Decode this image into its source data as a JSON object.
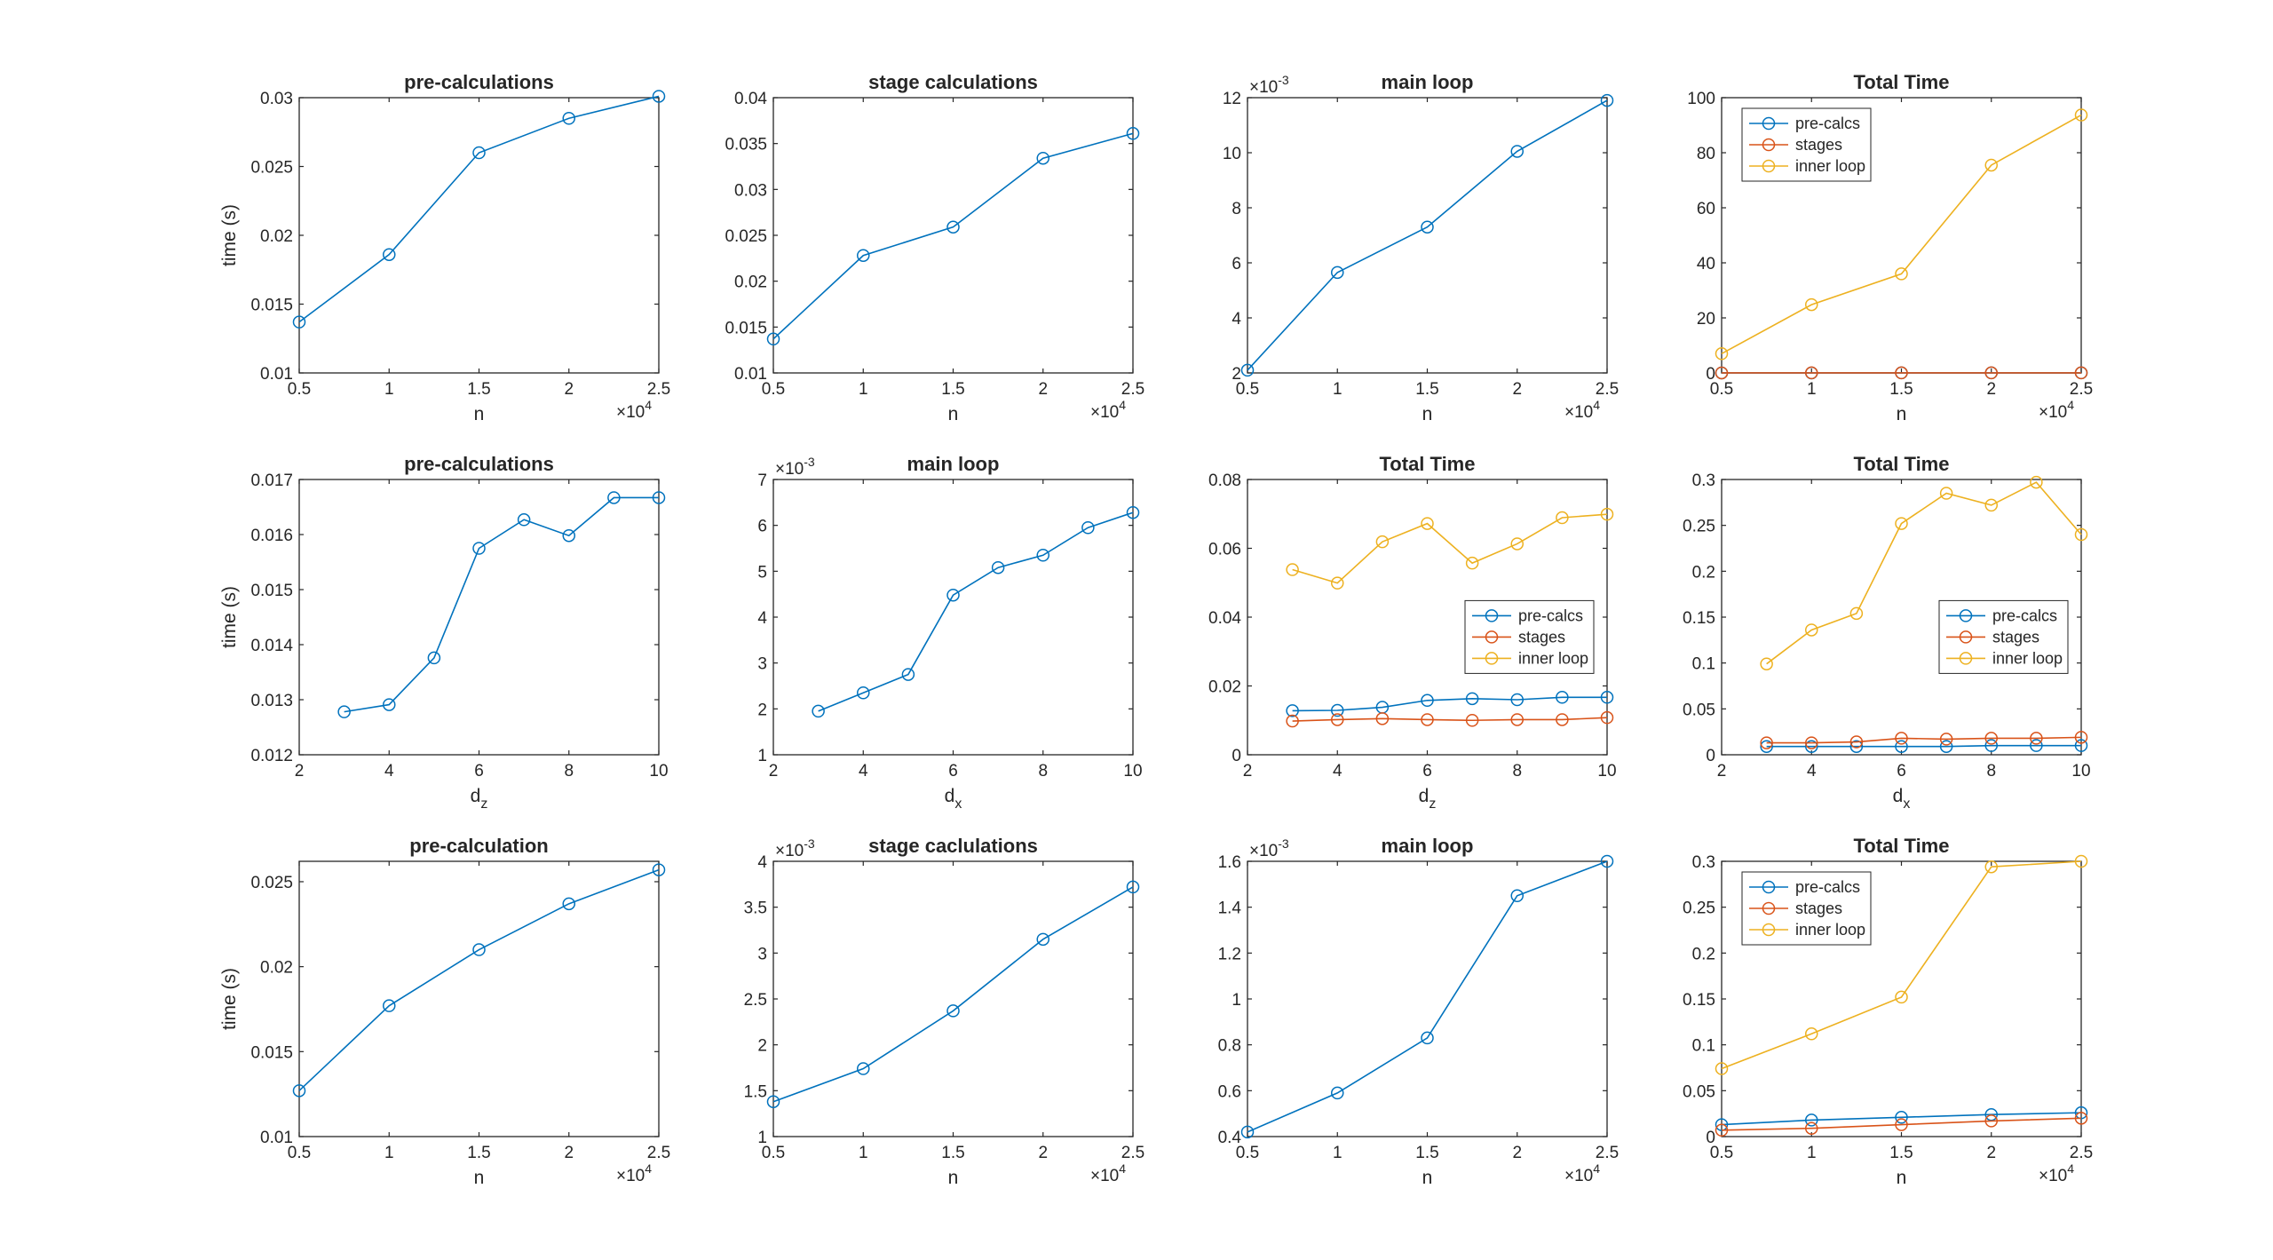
{
  "colors": {
    "blue": "#0072BD",
    "orange": "#D95319",
    "yellow": "#EDB120",
    "axis": "#262626",
    "background": "#ffffff"
  },
  "chart_data": [
    {
      "type": "line",
      "title": "pre-calculations",
      "xlabel": "n",
      "ylabel": "time (s)",
      "x": [
        5000,
        10000,
        15000,
        20000,
        25000
      ],
      "xlim": [
        5000,
        25000
      ],
      "xticks": [
        5000,
        10000,
        15000,
        20000,
        25000
      ],
      "xticklabels": [
        "0.5",
        "1",
        "1.5",
        "2",
        "2.5"
      ],
      "xexp": "4",
      "ylim": [
        0.01,
        0.03
      ],
      "yticks": [
        0.01,
        0.015,
        0.02,
        0.025,
        0.03
      ],
      "yticklabels": [
        "0.01",
        "0.015",
        "0.02",
        "0.025",
        "0.03"
      ],
      "series": [
        {
          "name": "pre-calculations",
          "color": "blue",
          "values": [
            0.0137,
            0.0186,
            0.026,
            0.0285,
            0.0301
          ]
        }
      ]
    },
    {
      "type": "line",
      "title": "stage calculations",
      "xlabel": "n",
      "ylabel": "",
      "x": [
        5000,
        10000,
        15000,
        20000,
        25000
      ],
      "xlim": [
        5000,
        25000
      ],
      "xticks": [
        5000,
        10000,
        15000,
        20000,
        25000
      ],
      "xticklabels": [
        "0.5",
        "1",
        "1.5",
        "2",
        "2.5"
      ],
      "xexp": "4",
      "ylim": [
        0.01,
        0.04
      ],
      "yticks": [
        0.01,
        0.015,
        0.02,
        0.025,
        0.03,
        0.035,
        0.04
      ],
      "yticklabels": [
        "0.01",
        "0.015",
        "0.02",
        "0.025",
        "0.03",
        "0.035",
        "0.04"
      ],
      "series": [
        {
          "name": "stage calculations",
          "color": "blue",
          "values": [
            0.0137,
            0.0228,
            0.0259,
            0.0334,
            0.0361
          ]
        }
      ]
    },
    {
      "type": "line",
      "title": "main loop",
      "xlabel": "n",
      "ylabel": "",
      "yexp": "-3",
      "x": [
        5000,
        10000,
        15000,
        20000,
        25000
      ],
      "xlim": [
        5000,
        25000
      ],
      "xticks": [
        5000,
        10000,
        15000,
        20000,
        25000
      ],
      "xticklabels": [
        "0.5",
        "1",
        "1.5",
        "2",
        "2.5"
      ],
      "xexp": "4",
      "ylim": [
        2,
        12
      ],
      "yticks": [
        2,
        4,
        6,
        8,
        10,
        12
      ],
      "yticklabels": [
        "2",
        "4",
        "6",
        "8",
        "10",
        "12"
      ],
      "series": [
        {
          "name": "main loop",
          "color": "blue",
          "values": [
            2.1,
            5.65,
            7.3,
            10.05,
            11.9
          ]
        }
      ]
    },
    {
      "type": "line",
      "title": "Total Time",
      "xlabel": "n",
      "ylabel": "",
      "x": [
        5000,
        10000,
        15000,
        20000,
        25000
      ],
      "xlim": [
        5000,
        25000
      ],
      "xticks": [
        5000,
        10000,
        15000,
        20000,
        25000
      ],
      "xticklabels": [
        "0.5",
        "1",
        "1.5",
        "2",
        "2.5"
      ],
      "xexp": "4",
      "ylim": [
        0,
        100
      ],
      "yticks": [
        0,
        20,
        40,
        60,
        80,
        100
      ],
      "yticklabels": [
        "0",
        "20",
        "40",
        "60",
        "80",
        "100"
      ],
      "legend": "top-left",
      "series": [
        {
          "name": "pre-calcs",
          "color": "blue",
          "values": [
            0.014,
            0.019,
            0.026,
            0.029,
            0.03
          ]
        },
        {
          "name": "stages",
          "color": "orange",
          "values": [
            0.014,
            0.023,
            0.026,
            0.033,
            0.036
          ]
        },
        {
          "name": "inner loop",
          "color": "yellow",
          "values": [
            7,
            24.8,
            36,
            75.5,
            93.7
          ]
        }
      ]
    },
    {
      "type": "line",
      "title": "pre-calculations",
      "xlabel": "d",
      "xsub": "z",
      "ylabel": "time (s)",
      "x": [
        3,
        4,
        5,
        6,
        7,
        8,
        9,
        10
      ],
      "xlim": [
        2,
        10
      ],
      "xticks": [
        2,
        4,
        6,
        8,
        10
      ],
      "xticklabels": [
        "2",
        "4",
        "6",
        "8",
        "10"
      ],
      "ylim": [
        0.012,
        0.017
      ],
      "yticks": [
        0.012,
        0.013,
        0.014,
        0.015,
        0.016,
        0.017
      ],
      "yticklabels": [
        "0.012",
        "0.013",
        "0.014",
        "0.015",
        "0.016",
        "0.017"
      ],
      "series": [
        {
          "name": "pre-calculations",
          "color": "blue",
          "values": [
            0.01278,
            0.01291,
            0.01376,
            0.01575,
            0.01627,
            0.01598,
            0.01667,
            0.01667
          ]
        }
      ]
    },
    {
      "type": "line",
      "title": "main loop",
      "xlabel": "d",
      "xsub": "x",
      "ylabel": "",
      "yexp": "-3",
      "x": [
        3,
        4,
        5,
        6,
        7,
        8,
        9,
        10
      ],
      "xlim": [
        2,
        10
      ],
      "xticks": [
        2,
        4,
        6,
        8,
        10
      ],
      "xticklabels": [
        "2",
        "4",
        "6",
        "8",
        "10"
      ],
      "ylim": [
        1,
        7
      ],
      "yticks": [
        1,
        2,
        3,
        4,
        5,
        6,
        7
      ],
      "yticklabels": [
        "1",
        "2",
        "3",
        "4",
        "5",
        "6",
        "7"
      ],
      "series": [
        {
          "name": "main loop",
          "color": "blue",
          "values": [
            1.95,
            2.35,
            2.75,
            4.48,
            5.08,
            5.35,
            5.95,
            6.28
          ]
        }
      ]
    },
    {
      "type": "line",
      "title": "Total Time",
      "xlabel": "d",
      "xsub": "z",
      "ylabel": "",
      "x": [
        3,
        4,
        5,
        6,
        7,
        8,
        9,
        10
      ],
      "xlim": [
        2,
        10
      ],
      "xticks": [
        2,
        4,
        6,
        8,
        10
      ],
      "xticklabels": [
        "2",
        "4",
        "6",
        "8",
        "10"
      ],
      "ylim": [
        0,
        0.08
      ],
      "yticks": [
        0,
        0.02,
        0.04,
        0.06,
        0.08
      ],
      "yticklabels": [
        "0",
        "0.02",
        "0.04",
        "0.06",
        "0.08"
      ],
      "legend": "middle-right",
      "series": [
        {
          "name": "pre-calcs",
          "color": "blue",
          "values": [
            0.0128,
            0.0129,
            0.0138,
            0.0158,
            0.0163,
            0.016,
            0.0167,
            0.0167
          ]
        },
        {
          "name": "stages",
          "color": "orange",
          "values": [
            0.0098,
            0.0102,
            0.0105,
            0.0102,
            0.01,
            0.0102,
            0.0102,
            0.0108
          ]
        },
        {
          "name": "inner loop",
          "color": "yellow",
          "values": [
            0.0538,
            0.0499,
            0.0619,
            0.0672,
            0.0557,
            0.0613,
            0.0689,
            0.0699
          ]
        }
      ]
    },
    {
      "type": "line",
      "title": "Total Time",
      "xlabel": "d",
      "xsub": "x",
      "ylabel": "",
      "x": [
        3,
        4,
        5,
        6,
        7,
        8,
        9,
        10
      ],
      "xlim": [
        2,
        10
      ],
      "xticks": [
        2,
        4,
        6,
        8,
        10
      ],
      "xticklabels": [
        "2",
        "4",
        "6",
        "8",
        "10"
      ],
      "ylim": [
        0,
        0.3
      ],
      "yticks": [
        0,
        0.05,
        0.1,
        0.15,
        0.2,
        0.25,
        0.3
      ],
      "yticklabels": [
        "0",
        "0.05",
        "0.1",
        "0.15",
        "0.2",
        "0.25",
        "0.3"
      ],
      "legend": "middle-right",
      "series": [
        {
          "name": "pre-calcs",
          "color": "blue",
          "values": [
            0.009,
            0.009,
            0.009,
            0.009,
            0.009,
            0.01,
            0.01,
            0.01
          ]
        },
        {
          "name": "stages",
          "color": "orange",
          "values": [
            0.013,
            0.013,
            0.014,
            0.018,
            0.017,
            0.018,
            0.018,
            0.019
          ]
        },
        {
          "name": "inner loop",
          "color": "yellow",
          "values": [
            0.099,
            0.136,
            0.154,
            0.252,
            0.285,
            0.272,
            0.297,
            0.24
          ]
        }
      ]
    },
    {
      "type": "line",
      "title": "pre-calculation",
      "xlabel": "n",
      "ylabel": "time (s)",
      "x": [
        5000,
        10000,
        15000,
        20000,
        25000
      ],
      "xlim": [
        5000,
        25000
      ],
      "xticks": [
        5000,
        10000,
        15000,
        20000,
        25000
      ],
      "xticklabels": [
        "0.5",
        "1",
        "1.5",
        "2",
        "2.5"
      ],
      "xexp": "4",
      "ylim": [
        0.01,
        0.0262
      ],
      "yticks": [
        0.01,
        0.015,
        0.02,
        0.025
      ],
      "yticklabels": [
        "0.01",
        "0.015",
        "0.02",
        "0.025"
      ],
      "series": [
        {
          "name": "pre-calculation",
          "color": "blue",
          "values": [
            0.0127,
            0.0177,
            0.021,
            0.0237,
            0.0257
          ]
        }
      ]
    },
    {
      "type": "line",
      "title": "stage caclulations",
      "xlabel": "n",
      "ylabel": "",
      "yexp": "-3",
      "x": [
        5000,
        10000,
        15000,
        20000,
        25000
      ],
      "xlim": [
        5000,
        25000
      ],
      "xticks": [
        5000,
        10000,
        15000,
        20000,
        25000
      ],
      "xticklabels": [
        "0.5",
        "1",
        "1.5",
        "2",
        "2.5"
      ],
      "xexp": "4",
      "ylim": [
        1,
        4
      ],
      "yticks": [
        1,
        1.5,
        2,
        2.5,
        3,
        3.5,
        4
      ],
      "yticklabels": [
        "1",
        "1.5",
        "2",
        "2.5",
        "3",
        "3.5",
        "4"
      ],
      "series": [
        {
          "name": "stage caclulations",
          "color": "blue",
          "values": [
            1.38,
            1.74,
            2.37,
            3.15,
            3.72
          ]
        }
      ]
    },
    {
      "type": "line",
      "title": "main loop",
      "xlabel": "n",
      "ylabel": "",
      "yexp": "-3",
      "x": [
        5000,
        10000,
        15000,
        20000,
        25000
      ],
      "xlim": [
        5000,
        25000
      ],
      "xticks": [
        5000,
        10000,
        15000,
        20000,
        25000
      ],
      "xticklabels": [
        "0.5",
        "1",
        "1.5",
        "2",
        "2.5"
      ],
      "xexp": "4",
      "ylim": [
        0.4,
        1.6
      ],
      "yticks": [
        0.4,
        0.6,
        0.8,
        1,
        1.2,
        1.4,
        1.6
      ],
      "yticklabels": [
        "0.4",
        "0.6",
        "0.8",
        "1",
        "1.2",
        "1.4",
        "1.6"
      ],
      "series": [
        {
          "name": "main loop",
          "color": "blue",
          "values": [
            0.42,
            0.59,
            0.83,
            1.45,
            1.6
          ]
        }
      ]
    },
    {
      "type": "line",
      "title": "Total Time",
      "xlabel": "n",
      "ylabel": "",
      "x": [
        5000,
        10000,
        15000,
        20000,
        25000
      ],
      "xlim": [
        5000,
        25000
      ],
      "xticks": [
        5000,
        10000,
        15000,
        20000,
        25000
      ],
      "xticklabels": [
        "0.5",
        "1",
        "1.5",
        "2",
        "2.5"
      ],
      "xexp": "4",
      "ylim": [
        0,
        0.3
      ],
      "yticks": [
        0,
        0.05,
        0.1,
        0.15,
        0.2,
        0.25,
        0.3
      ],
      "yticklabels": [
        "0",
        "0.05",
        "0.1",
        "0.15",
        "0.2",
        "0.25",
        "0.3"
      ],
      "legend": "top-left",
      "series": [
        {
          "name": "pre-calcs",
          "color": "blue",
          "values": [
            0.013,
            0.018,
            0.021,
            0.024,
            0.026
          ]
        },
        {
          "name": "stages",
          "color": "orange",
          "values": [
            0.007,
            0.009,
            0.013,
            0.017,
            0.02
          ]
        },
        {
          "name": "inner loop",
          "color": "yellow",
          "values": [
            0.074,
            0.112,
            0.152,
            0.294,
            0.3
          ]
        }
      ]
    }
  ]
}
